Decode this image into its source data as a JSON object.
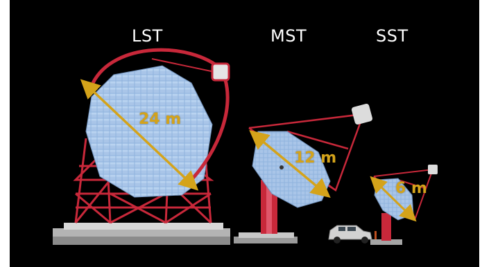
{
  "labels": {
    "lst": "LST",
    "mst": "MST",
    "sst": "SST"
  },
  "dimensions": {
    "lst": "24 m",
    "mst": "12 m",
    "sst": "6 m"
  },
  "colors": {
    "background": "#000000",
    "structure": "#c8283a",
    "mirror": "#8fb3de",
    "arrow": "#d4a31a"
  }
}
